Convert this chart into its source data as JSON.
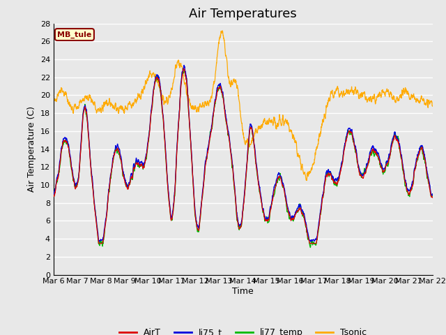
{
  "title": "Air Temperatures",
  "xlabel": "Time",
  "ylabel": "Air Temperature (C)",
  "ylim": [
    0,
    28
  ],
  "yticks": [
    0,
    2,
    4,
    6,
    8,
    10,
    12,
    14,
    16,
    18,
    20,
    22,
    24,
    26,
    28
  ],
  "background_color": "#e8e8e8",
  "plot_bg_color": "#e8e8e8",
  "grid_color": "#ffffff",
  "annotation_text": "MB_tule",
  "annotation_bg": "#ffffcc",
  "annotation_border": "#8b0000",
  "legend_labels": [
    "AirT",
    "li75_t",
    "li77_temp",
    "Tsonic"
  ],
  "line_colors": [
    "#dd0000",
    "#0000dd",
    "#00bb00",
    "#ffaa00"
  ],
  "title_fontsize": 13,
  "axis_label_fontsize": 9,
  "tick_fontsize": 8
}
